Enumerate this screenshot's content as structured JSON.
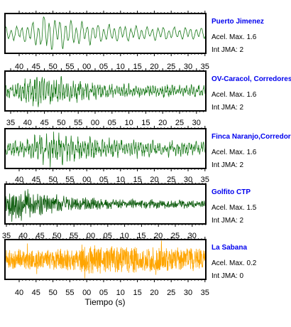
{
  "chart_data": {
    "type": "line",
    "xlabel": "Tiempo (s)",
    "grid": false,
    "panels": [
      {
        "station": "Puerto Jimenez",
        "acel_max": "Acel. Max. 1.6",
        "int_jma": "Int JMA: 2",
        "color": "#1a7a1a",
        "tick_labels": [
          "40",
          "45",
          "50",
          "55",
          "00",
          "05",
          "10",
          "15",
          "20",
          "25",
          "30",
          "35"
        ],
        "x_range": [
          "17:36:36",
          "17:37:33"
        ],
        "waveform": {
          "seed": 11,
          "onset": 0.0,
          "peak_pos": 0.2,
          "decay": 0.45,
          "base": 0.3,
          "peak_amp": 1.0,
          "mode": "smooth"
        }
      },
      {
        "station": "OV-Caracol, Corredores",
        "acel_max": "Acel. Max. 1.6",
        "int_jma": "Int JMA: 2",
        "color": "#1a7a1a",
        "tick_labels": [
          "35",
          "40",
          "45",
          "50",
          "55",
          "00",
          "05",
          "10",
          "15",
          "20",
          "25",
          "30"
        ],
        "x_range": [
          "17:36:32",
          "17:37:33"
        ],
        "waveform": {
          "seed": 23,
          "onset": 0.0,
          "peak_pos": 0.15,
          "decay": 0.4,
          "base": 0.32,
          "peak_amp": 1.0,
          "mode": "spiky"
        }
      },
      {
        "station": "Finca Naranjo,Corredores",
        "acel_max": "Acel. Max. 1.6",
        "int_jma": "Int JMA: 2",
        "color": "#1a7a1a",
        "tick_labels": [
          "40",
          "45",
          "50",
          "55",
          "00",
          "05",
          "10",
          "15",
          "20",
          "25",
          "30",
          "35"
        ],
        "x_range": [
          "17:36:36",
          "17:37:35"
        ],
        "waveform": {
          "seed": 37,
          "onset": 0.0,
          "peak_pos": 0.2,
          "decay": 0.5,
          "base": 0.35,
          "peak_amp": 1.0,
          "mode": "spiky"
        }
      },
      {
        "station": "Golfito CTP",
        "acel_max": "Acel. Max. 1.5",
        "int_jma": "Int JMA: 2",
        "color": "#0a5a0a",
        "tick_labels": [
          "35",
          "40",
          "45",
          "50",
          "55",
          "00",
          "05",
          "10",
          "15",
          "20",
          "25",
          "30"
        ],
        "x_range": [
          "17:36:35",
          "17:37:36"
        ],
        "waveform": {
          "seed": 53,
          "onset": 0.0,
          "peak_pos": 0.05,
          "decay": 0.35,
          "base": 0.22,
          "peak_amp": 1.0,
          "mode": "dense"
        }
      },
      {
        "station": "La Sabana",
        "acel_max": "Acel. Max. 0.2",
        "int_jma": "Int JMA: 0",
        "color": "#ffa500",
        "tick_labels": [
          "40",
          "45",
          "50",
          "55",
          "00",
          "05",
          "10",
          "15",
          "20",
          "25",
          "30",
          "35"
        ],
        "x_range": [
          "17:36:36",
          "17:37:36"
        ],
        "waveform": {
          "seed": 71,
          "onset": 0.0,
          "peak_pos": 0.4,
          "decay": 0.9,
          "base": 0.55,
          "peak_amp": 0.9,
          "mode": "noise"
        }
      }
    ]
  }
}
